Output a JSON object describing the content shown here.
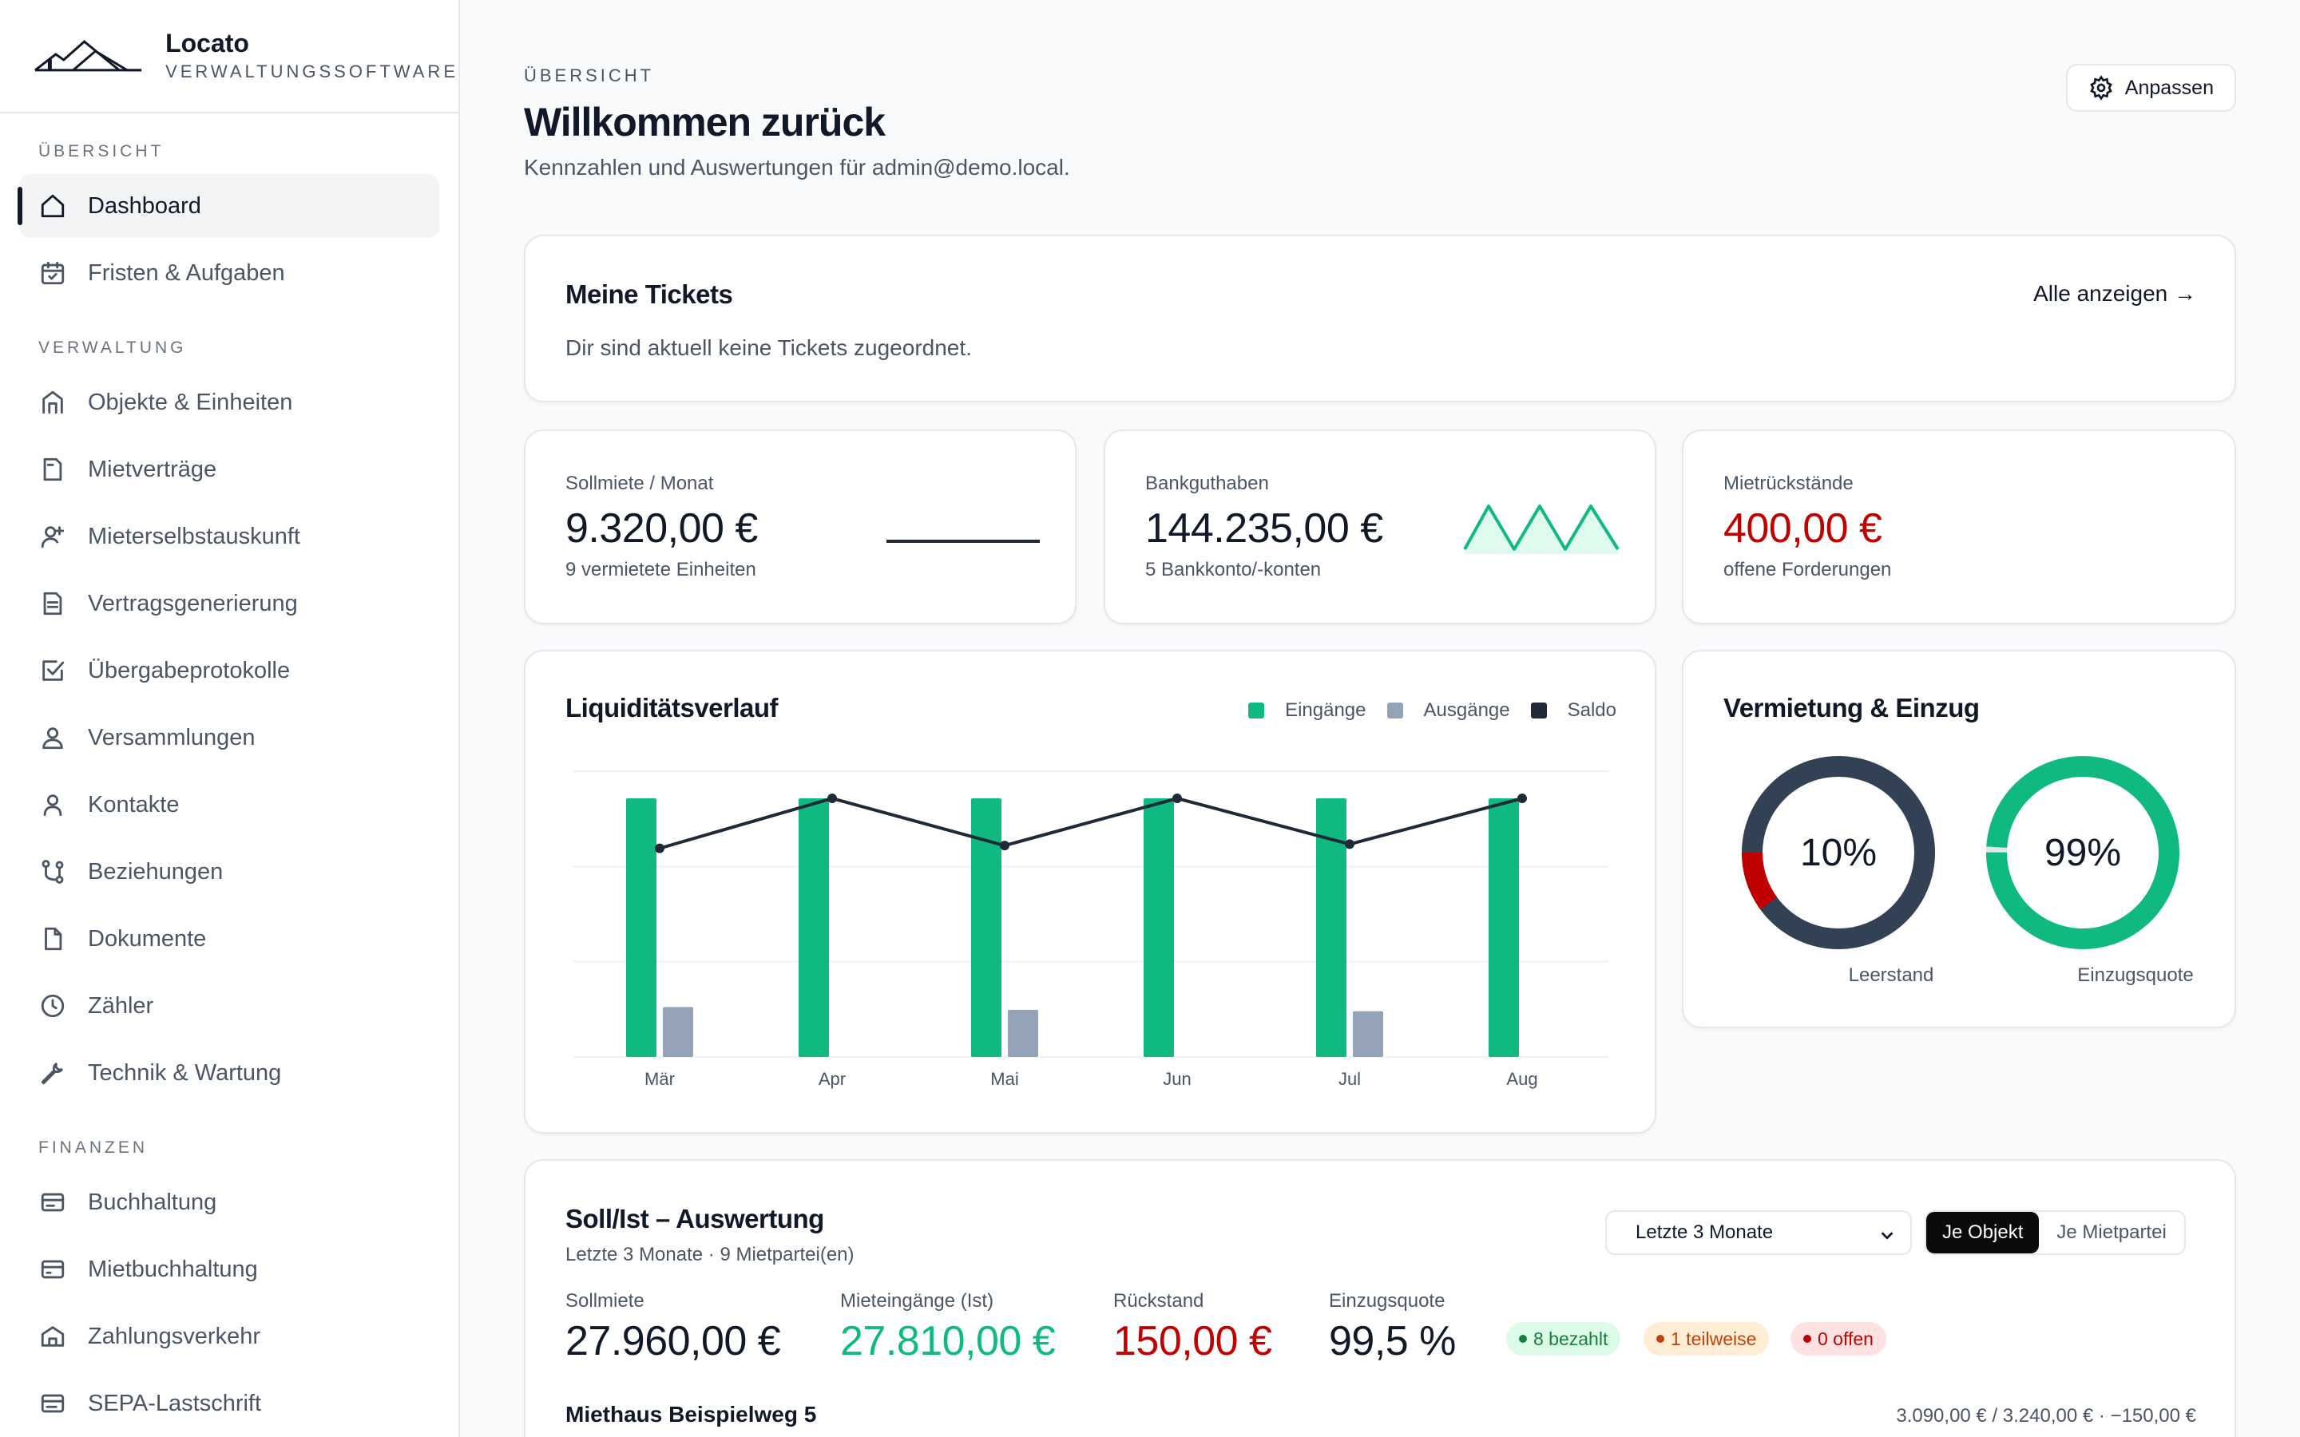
{
  "brand": {
    "name": "Locato",
    "subtitle": "VERWALTUNGSSOFTWARE"
  },
  "sidebar": {
    "sections": [
      {
        "label": "ÜBERSICHT"
      },
      {
        "label": "VERWALTUNG"
      },
      {
        "label": "FINANZEN"
      }
    ],
    "items": [
      {
        "label": "Dashboard",
        "icon": "home-icon",
        "active": true
      },
      {
        "label": "Fristen & Aufgaben",
        "icon": "calendar-check-icon"
      },
      {
        "label": "Objekte & Einheiten",
        "icon": "building-icon"
      },
      {
        "label": "Mietverträge",
        "icon": "document-icon"
      },
      {
        "label": "Mieterselbstauskunft",
        "icon": "user-plus-icon"
      },
      {
        "label": "Vertragsgenerierung",
        "icon": "file-text-icon"
      },
      {
        "label": "Übergabeprotokolle",
        "icon": "checkbox-icon"
      },
      {
        "label": "Versammlungen",
        "icon": "users-icon"
      },
      {
        "label": "Kontakte",
        "icon": "user-icon"
      },
      {
        "label": "Beziehungen",
        "icon": "git-branch-icon"
      },
      {
        "label": "Dokumente",
        "icon": "file-icon"
      },
      {
        "label": "Zähler",
        "icon": "clock-icon"
      },
      {
        "label": "Technik & Wartung",
        "icon": "wrench-icon"
      },
      {
        "label": "Buchhaltung",
        "icon": "ledger-icon"
      },
      {
        "label": "Mietbuchhaltung",
        "icon": "credit-card-icon"
      },
      {
        "label": "Zahlungsverkehr",
        "icon": "bank-icon"
      },
      {
        "label": "SEPA-Lastschrift",
        "icon": "card-icon"
      }
    ]
  },
  "header": {
    "eyebrow": "ÜBERSICHT",
    "title": "Willkommen zurück",
    "subtitle": "Kennzahlen und Auswertungen für admin@demo.local.",
    "customize_label": "Anpassen"
  },
  "tickets": {
    "title": "Meine Tickets",
    "link": "Alle anzeigen →",
    "empty": "Dir sind aktuell keine Tickets zugeordnet."
  },
  "kpis": [
    {
      "label": "Sollmiete / Monat",
      "value": "9.320,00 €",
      "sub": "9 vermietete Einheiten",
      "color": "#111827"
    },
    {
      "label": "Bankguthaben",
      "value": "144.235,00 €",
      "sub": "5 Bankkonto/-konten",
      "color": "#111827"
    },
    {
      "label": "Mietrückstände",
      "value": "400,00 €",
      "sub": "offene Forderungen",
      "color": "#c00000"
    }
  ],
  "liquidity": {
    "title": "Liquiditätsverlauf",
    "legend": [
      "Eingänge",
      "Ausgänge",
      "Saldo"
    ],
    "colors": {
      "in": "#10b981",
      "out": "#94a3b8",
      "saldo": "#1f2937"
    }
  },
  "chart_data": {
    "type": "bar",
    "title": "Liquiditätsverlauf",
    "categories": [
      "Mär",
      "Apr",
      "Mai",
      "Jun",
      "Jul",
      "Aug"
    ],
    "series": [
      {
        "name": "Eingänge",
        "type": "bar",
        "values": [
          9320,
          9320,
          9320,
          9320,
          9320,
          9320
        ]
      },
      {
        "name": "Ausgänge",
        "type": "bar",
        "values": [
          1800,
          0,
          1700,
          0,
          1650,
          0
        ]
      },
      {
        "name": "Saldo",
        "type": "line",
        "values": [
          7520,
          9320,
          7620,
          9320,
          7670,
          9320
        ]
      }
    ],
    "ylim": [
      0,
      10300
    ],
    "grid": true,
    "legend": "top-right"
  },
  "occupancy": {
    "title": "Vermietung & Einzug",
    "donuts": [
      {
        "label": "Leerstand",
        "value_text": "10%",
        "fraction": 0.1,
        "color": "#c00000",
        "track": "#334155"
      },
      {
        "label": "Einzugsquote",
        "value_text": "99%",
        "fraction": 0.99,
        "color": "#10b981",
        "track": "#e5e7eb"
      }
    ]
  },
  "sollist": {
    "title": "Soll/Ist – Auswertung",
    "subtitle": "Letzte 3 Monate · 9 Mietpartei(en)",
    "period": "Letzte 3 Monate",
    "toggle_on": "Je Objekt",
    "toggle_off": "Je Mietpartei",
    "stats": [
      {
        "label": "Sollmiete",
        "value": "27.960,00 €",
        "color": "#111827"
      },
      {
        "label": "Mieteingänge (Ist)",
        "value": "27.810,00 €",
        "color": "#10b981"
      },
      {
        "label": "Rückstand",
        "value": "150,00 €",
        "color": "#c00000"
      },
      {
        "label": "Einzugsquote",
        "value": "99,5 %",
        "color": "#111827"
      }
    ],
    "pills": [
      {
        "label": "8 bezahlt",
        "bg": "#dcfce7",
        "fg": "#15803d"
      },
      {
        "label": "1 teilweise",
        "bg": "#ffedd5",
        "fg": "#c2410c"
      },
      {
        "label": "0 offen",
        "bg": "#fee2e2",
        "fg": "#c00000"
      }
    ],
    "row": {
      "name": "Miethaus Beispielweg 5",
      "summary": "3.090,00 € / 3.240,00 € · −150,00 €"
    }
  }
}
